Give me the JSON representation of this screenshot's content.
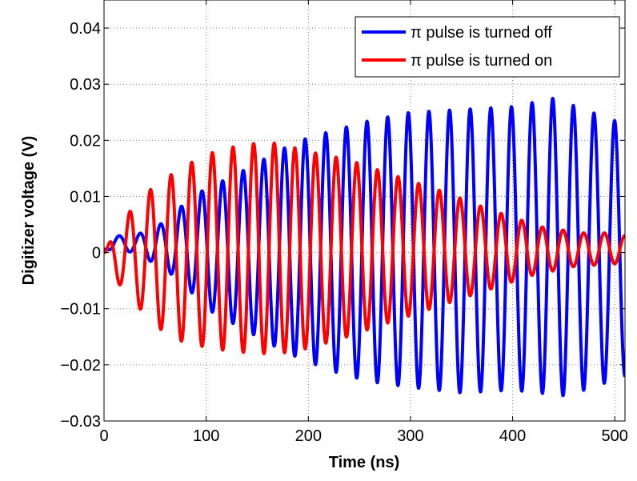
{
  "chart_data": {
    "type": "line",
    "xlabel": "Time (ns)",
    "ylabel": "Digitizer voltage (V)",
    "xlim": [
      0,
      510
    ],
    "ylim": [
      -0.03,
      0.045
    ],
    "x_ticks": [
      0,
      100,
      200,
      300,
      400,
      500
    ],
    "y_ticks": [
      -0.03,
      -0.02,
      -0.01,
      0,
      0.01,
      0.02,
      0.03,
      0.04
    ],
    "x_tick_labels": [
      "0",
      "100",
      "200",
      "300",
      "400",
      "500"
    ],
    "y_tick_labels": [
      "−0.03",
      "−0.02",
      "−0.01",
      "0",
      "0.01",
      "0.02",
      "0.03",
      "0.04"
    ],
    "grid": true,
    "legend_position": "top-right",
    "series": [
      {
        "name": "π pulse is turned off",
        "color": "#0000ff",
        "oscillation_period_ns": 20.2,
        "oscillation_phase_ns": 10,
        "envelope_upper": {
          "t": [
            0,
            10,
            30,
            60,
            80,
            100,
            125,
            150,
            175,
            200,
            230,
            260,
            300,
            350,
            400,
            440,
            470,
            500,
            510
          ],
          "v": [
            0.0005,
            0.003,
            0.003,
            0.0055,
            0.009,
            0.0115,
            0.0135,
            0.016,
            0.0185,
            0.0205,
            0.022,
            0.0235,
            0.025,
            0.0255,
            0.026,
            0.0275,
            0.0255,
            0.0235,
            0.022
          ]
        },
        "envelope_lower": {
          "t": [
            0,
            10,
            30,
            60,
            80,
            100,
            125,
            150,
            175,
            200,
            230,
            260,
            300,
            350,
            400,
            450,
            480,
            500,
            510
          ],
          "v": [
            0.0005,
            0.0005,
            0.0,
            -0.003,
            -0.006,
            -0.01,
            -0.0125,
            -0.015,
            -0.0175,
            -0.0195,
            -0.0215,
            -0.023,
            -0.024,
            -0.025,
            -0.0245,
            -0.0255,
            -0.024,
            -0.0225,
            -0.022
          ]
        }
      },
      {
        "name": "π pulse is turned on",
        "color": "#ff0000",
        "oscillation_period_ns": 20.2,
        "oscillation_phase_ns": 0,
        "envelope_upper": {
          "t": [
            0,
            12,
            30,
            50,
            75,
            100,
            130,
            150,
            170,
            200,
            240,
            280,
            330,
            380,
            430,
            470,
            500,
            510
          ],
          "v": [
            0.0,
            0.004,
            0.0085,
            0.012,
            0.015,
            0.0175,
            0.019,
            0.0195,
            0.0195,
            0.018,
            0.0165,
            0.014,
            0.011,
            0.0075,
            0.0045,
            0.0035,
            0.0035,
            0.003
          ]
        },
        "envelope_lower": {
          "t": [
            0,
            12,
            30,
            50,
            70,
            90,
            120,
            150,
            170,
            190,
            230,
            270,
            320,
            370,
            420,
            460,
            500,
            510
          ],
          "v": [
            0.0,
            -0.005,
            -0.009,
            -0.013,
            -0.0155,
            -0.0165,
            -0.0175,
            -0.018,
            -0.018,
            -0.0175,
            -0.0155,
            -0.013,
            -0.01,
            -0.007,
            -0.004,
            -0.0025,
            -0.002,
            -0.002
          ]
        }
      }
    ]
  }
}
